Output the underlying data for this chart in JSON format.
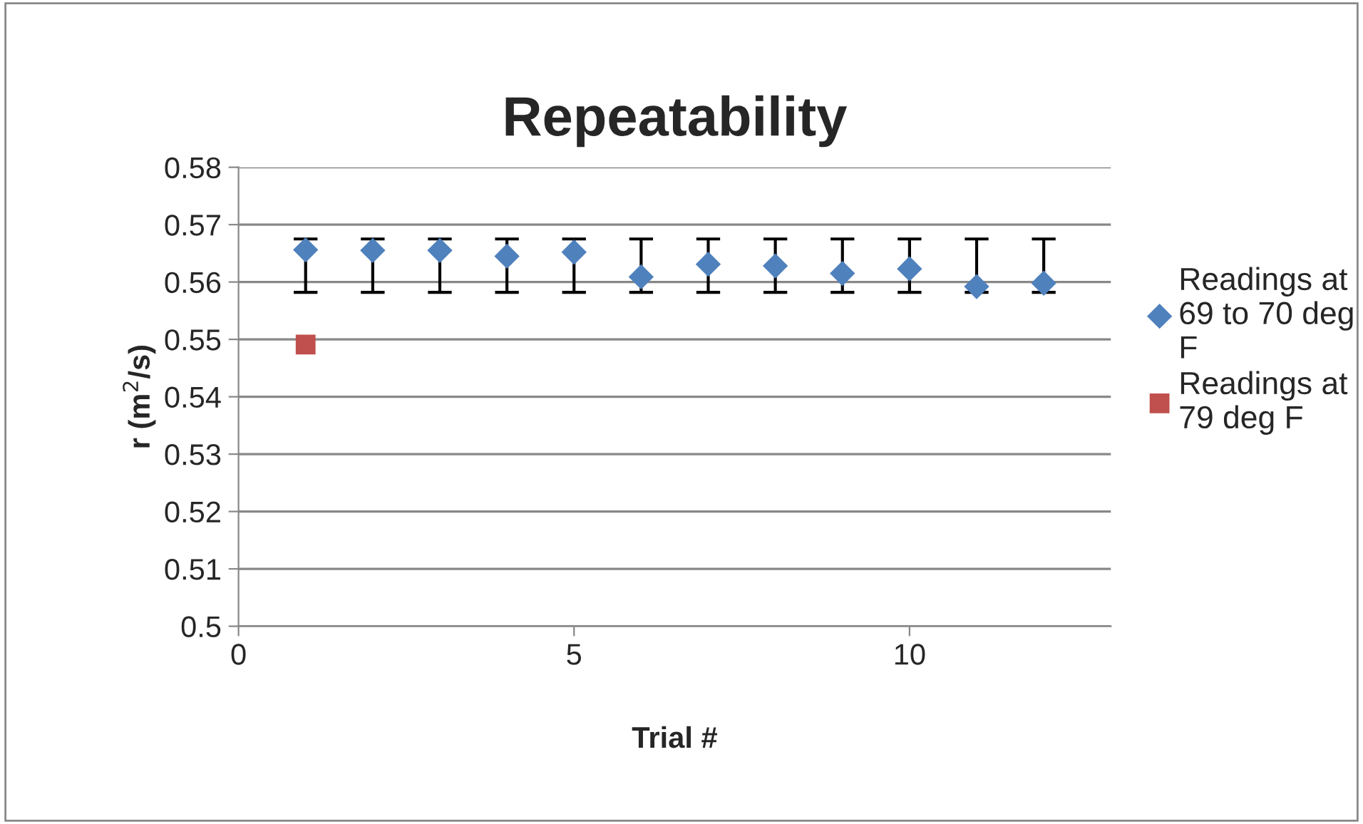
{
  "chart_data": {
    "type": "scatter",
    "title": "Repeatability",
    "xlabel": "Trial #",
    "ylabel": "r (m$^{2}$/s)",
    "xlim": [
      0,
      13
    ],
    "xticks": [
      0,
      5,
      10
    ],
    "ylim": [
      0.5,
      0.58
    ],
    "yticks": [
      0.5,
      0.51,
      0.52,
      0.53,
      0.54,
      0.55,
      0.56,
      0.57,
      0.58
    ],
    "grid": "y",
    "legend": "right",
    "series": [
      {
        "name": "Readings at 69 to 70 deg F",
        "color": "#4f81bd",
        "marker": "diamond",
        "x": [
          1,
          2,
          3,
          4,
          5,
          6,
          7,
          8,
          9,
          10,
          11,
          12
        ],
        "values": [
          0.5656,
          0.5655,
          0.5655,
          0.5645,
          0.5652,
          0.5609,
          0.5631,
          0.5628,
          0.5615,
          0.5623,
          0.5592,
          0.5598
        ],
        "errors": [
          [
            0.5582,
            0.5675
          ],
          [
            0.5582,
            0.5675
          ],
          [
            0.5582,
            0.5675
          ],
          [
            0.5582,
            0.5675
          ],
          [
            0.5582,
            0.5675
          ],
          [
            0.5582,
            0.5675
          ],
          [
            0.5582,
            0.5675
          ],
          [
            0.5582,
            0.5675
          ],
          [
            0.5582,
            0.5675
          ],
          [
            0.5582,
            0.5675
          ],
          [
            0.5582,
            0.5675
          ],
          [
            0.5582,
            0.5675
          ]
        ]
      },
      {
        "name": "Readings at 79 deg F",
        "color": "#c0504d",
        "marker": "square",
        "x": [
          1
        ],
        "values": [
          0.5491
        ]
      }
    ]
  }
}
